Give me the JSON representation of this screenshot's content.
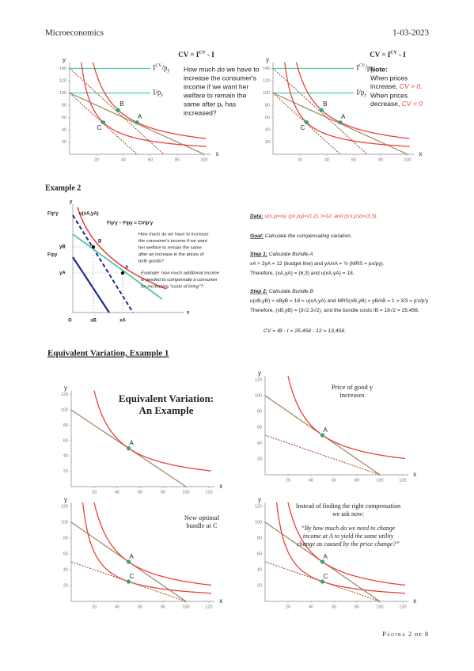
{
  "header": {
    "course": "Microeconomics",
    "date": "1-03-2023"
  },
  "top_charts": [
    {
      "title": {
        "a": "CV = I",
        "sup": "CV",
        "b": " - I"
      },
      "y_axis": "y",
      "x_axis": "x",
      "yticks": [
        20,
        40,
        60,
        80,
        100,
        120,
        140
      ],
      "xticks": [
        20,
        40,
        60,
        80,
        100
      ],
      "line_labels": [
        {
          "main": "I",
          "sup": "CV",
          "tail": "/p",
          "sub": "y"
        },
        {
          "main": "I",
          "tail": "/p",
          "sub": "y"
        }
      ],
      "points": [
        "A",
        "B",
        "C"
      ],
      "note_lines": [
        "How much do we have to",
        "increase the consumer's",
        "income if we want her",
        "welfare to remain the",
        "same after p₁ has",
        "increased?"
      ]
    },
    {
      "title": {
        "a": "CV = I",
        "sup": "CV",
        "b": " - I"
      },
      "y_axis": "y",
      "x_axis": "x",
      "yticks": [
        20,
        40,
        60,
        80,
        100,
        120,
        140
      ],
      "xticks": [
        20,
        40,
        60,
        80,
        100
      ],
      "line_labels": [
        {
          "main": "I",
          "sup": "CV",
          "tail": "/p",
          "sub": "y"
        },
        {
          "main": "I",
          "tail": "/p",
          "sub": "y"
        }
      ],
      "points": [
        "A",
        "B",
        "C"
      ],
      "note_title": "Note:",
      "note_lines": [
        "When prices",
        {
          "a": "increase, ",
          "red": "CV > 0."
        },
        "When prices",
        {
          "a": "decrease, ",
          "red": "CV < 0"
        }
      ]
    }
  ],
  "example2": {
    "heading": "Example 2",
    "diagram": {
      "labels": [
        "F/p'y",
        "u(xA,yA)",
        "F/p'y – F/py = CV/p'y",
        "yB",
        "F/py",
        "yA",
        "B",
        "A",
        "O",
        "xB",
        "xA",
        "x",
        "y"
      ],
      "question_lines": [
        "How much do we have to increase",
        "the consumer's income if we want",
        "her welfare to remain the same",
        "after an increase in the prices of",
        "both goods?"
      ],
      "example_lines": [
        "Example: how much additional income",
        "is needed to compensate a consumer",
        "for increasing \"costs of living\"?"
      ]
    },
    "solution": [
      {
        "label": "Data:",
        "text": " u(x,y)=xy, (px,py)=(1,2), I=12, and (p'x,p'y)=(3,3)."
      },
      {
        "label": "Goal:",
        "text": " Calculate the compensating variation."
      },
      {
        "label": "Step 1:",
        "text": " Calculate Bundle A"
      },
      {
        "text": "xA + 2yA = 12 (budget line) and yA/xA = ½ (MRS = px/py)."
      },
      {
        "text": "Therefore, (xA,yA) = (6,3) and u(xA,yA) = 18."
      },
      {
        "label": "Step 2:",
        "text": " Calculate Bundle B"
      },
      {
        "text": "u(xB,yB) = xByB = 18 = u(xA,yA) and MRS(xB,yB) = yB/xB = 1 = 3/3 = p'x/p'y"
      },
      {
        "text": "Therefore, (xB,yB) = (3√2,3√2), and the bundle costs IB = 18√2 = 25.456."
      }
    ],
    "result": "CV = IB - I = 25.456 - 12 = 13.456."
  },
  "ev_heading": "Equivalent Variation, Example 1",
  "ev_charts": [
    {
      "y_axis": "y",
      "x_axis": "x",
      "yticks": [
        20,
        40,
        60,
        80,
        100,
        120
      ],
      "xticks": [
        20,
        40,
        60,
        80,
        100,
        120
      ],
      "points": [
        "A"
      ],
      "caption_lines": [
        "Equivalent Variation:",
        "An Example"
      ]
    },
    {
      "y_axis": "y",
      "x_axis": "x",
      "yticks": [
        20,
        40,
        60,
        80,
        100,
        120
      ],
      "xticks": [
        20,
        40,
        60,
        80,
        100,
        120
      ],
      "points": [
        "A"
      ],
      "caption_lines": [
        "Price of good y",
        "increases"
      ]
    },
    {
      "y_axis": "y",
      "x_axis": "x",
      "yticks": [
        20,
        40,
        60,
        80,
        100,
        120
      ],
      "xticks": [
        20,
        40,
        60,
        80,
        100,
        120
      ],
      "points": [
        "A",
        "C"
      ],
      "caption_lines": [
        "New optimal",
        "bundle at C"
      ]
    },
    {
      "y_axis": "y",
      "x_axis": "x",
      "yticks": [
        20,
        40,
        60,
        80,
        100,
        120
      ],
      "xticks": [
        20,
        40,
        60,
        80,
        100,
        120
      ],
      "points": [
        "A",
        "C"
      ],
      "caption_lines": [
        "Instead of finding the right compensation",
        "we ask now:"
      ],
      "quote_lines": [
        "“By how much do we need to change",
        "income at A to yield the same utility",
        "change as caused by the price change?”"
      ]
    }
  ],
  "footer": "Página 2 de 8"
}
